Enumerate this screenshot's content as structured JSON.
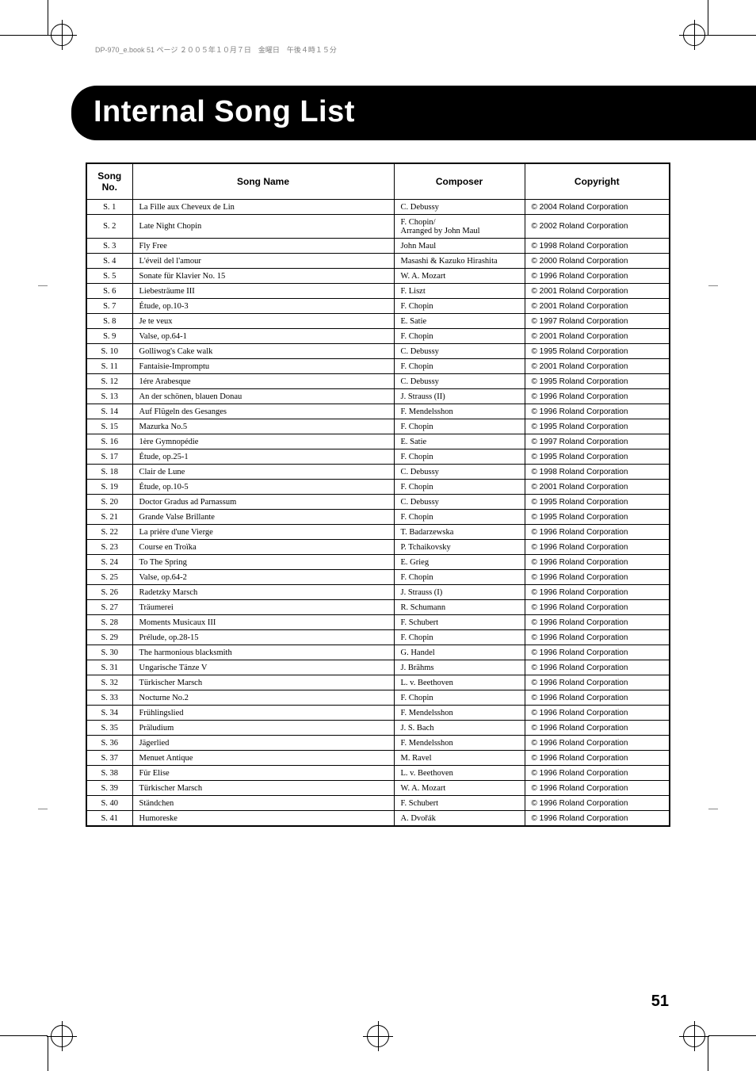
{
  "meta_line": "DP-970_e.book  51 ページ  ２００５年１０月７日　金曜日　午後４時１５分",
  "title": "Internal Song List",
  "headers": {
    "no": "Song\nNo.",
    "name": "Song Name",
    "composer": "Composer",
    "copyright": "Copyright"
  },
  "page_number": "51",
  "songs": [
    {
      "no": "S. 1",
      "name": "La Fille aux Cheveux de Lin",
      "composer": "C. Debussy",
      "copyright": "© 2004 Roland Corporation"
    },
    {
      "no": "S. 2",
      "name": "Late Night Chopin",
      "composer": "F. Chopin/\nArranged by John Maul",
      "copyright": "© 2002 Roland Corporation"
    },
    {
      "no": "S. 3",
      "name": "Fly Free",
      "composer": "John Maul",
      "copyright": "© 1998 Roland Corporation"
    },
    {
      "no": "S. 4",
      "name": "L'éveil del l'amour",
      "composer": "Masashi & Kazuko Hirashita",
      "copyright": "© 2000 Roland Corporation"
    },
    {
      "no": "S. 5",
      "name": "Sonate für Klavier No. 15",
      "composer": "W. A. Mozart",
      "copyright": "© 1996 Roland Corporation"
    },
    {
      "no": "S. 6",
      "name": "Liebesträume III",
      "composer": "F. Liszt",
      "copyright": "© 2001 Roland Corporation"
    },
    {
      "no": "S. 7",
      "name": "Étude, op.10-3",
      "composer": "F. Chopin",
      "copyright": "© 2001 Roland Corporation"
    },
    {
      "no": "S. 8",
      "name": "Je te veux",
      "composer": "E. Satie",
      "copyright": "© 1997 Roland Corporation"
    },
    {
      "no": "S. 9",
      "name": "Valse, op.64-1",
      "composer": "F. Chopin",
      "copyright": "© 2001 Roland Corporation"
    },
    {
      "no": "S. 10",
      "name": "Golliwog's Cake walk",
      "composer": "C. Debussy",
      "copyright": "© 1995 Roland Corporation"
    },
    {
      "no": "S. 11",
      "name": "Fantaisie-Impromptu",
      "composer": "F. Chopin",
      "copyright": "© 2001 Roland Corporation"
    },
    {
      "no": "S. 12",
      "name": "1ére Arabesque",
      "composer": "C. Debussy",
      "copyright": "© 1995 Roland Corporation"
    },
    {
      "no": "S. 13",
      "name": "An der schönen, blauen Donau",
      "composer": "J. Strauss (II)",
      "copyright": "© 1996 Roland Corporation"
    },
    {
      "no": "S. 14",
      "name": "Auf Flügeln des Gesanges",
      "composer": "F. Mendelsshon",
      "copyright": "© 1996 Roland Corporation"
    },
    {
      "no": "S. 15",
      "name": "Mazurka No.5",
      "composer": "F. Chopin",
      "copyright": "© 1995 Roland Corporation"
    },
    {
      "no": "S. 16",
      "name": "1ère Gymnopédie",
      "composer": "E. Satie",
      "copyright": "© 1997 Roland Corporation"
    },
    {
      "no": "S. 17",
      "name": "Étude, op.25-1",
      "composer": "F. Chopin",
      "copyright": "© 1995 Roland Corporation"
    },
    {
      "no": "S. 18",
      "name": "Clair de Lune",
      "composer": "C. Debussy",
      "copyright": "© 1998 Roland Corporation"
    },
    {
      "no": "S. 19",
      "name": "Étude, op.10-5",
      "composer": "F. Chopin",
      "copyright": "© 2001 Roland Corporation"
    },
    {
      "no": "S. 20",
      "name": "Doctor Gradus ad Parnassum",
      "composer": "C. Debussy",
      "copyright": "© 1995 Roland Corporation"
    },
    {
      "no": "S. 21",
      "name": "Grande Valse Brillante",
      "composer": "F. Chopin",
      "copyright": "© 1995 Roland Corporation"
    },
    {
      "no": "S. 22",
      "name": "La prière d'une Vierge",
      "composer": "T. Badarzewska",
      "copyright": "© 1996 Roland Corporation"
    },
    {
      "no": "S. 23",
      "name": "Course en Troïka",
      "composer": "P. Tchaikovsky",
      "copyright": "© 1996 Roland Corporation"
    },
    {
      "no": "S. 24",
      "name": "To The Spring",
      "composer": "E. Grieg",
      "copyright": "© 1996 Roland Corporation"
    },
    {
      "no": "S. 25",
      "name": "Valse, op.64-2",
      "composer": "F. Chopin",
      "copyright": "© 1996 Roland Corporation"
    },
    {
      "no": "S. 26",
      "name": "Radetzky Marsch",
      "composer": "J. Strauss (I)",
      "copyright": "© 1996 Roland Corporation"
    },
    {
      "no": "S. 27",
      "name": "Träumerei",
      "composer": "R. Schumann",
      "copyright": "© 1996 Roland Corporation"
    },
    {
      "no": "S. 28",
      "name": "Moments Musicaux III",
      "composer": "F. Schubert",
      "copyright": "© 1996 Roland Corporation"
    },
    {
      "no": "S. 29",
      "name": "Prélude, op.28-15",
      "composer": "F. Chopin",
      "copyright": "© 1996 Roland Corporation"
    },
    {
      "no": "S. 30",
      "name": "The harmonious blacksmith",
      "composer": "G. Handel",
      "copyright": "© 1996 Roland Corporation"
    },
    {
      "no": "S. 31",
      "name": "Ungarische Tänze V",
      "composer": "J. Brähms",
      "copyright": "© 1996 Roland Corporation"
    },
    {
      "no": "S. 32",
      "name": "Türkischer Marsch",
      "composer": "L. v. Beethoven",
      "copyright": "© 1996 Roland Corporation"
    },
    {
      "no": "S. 33",
      "name": "Nocturne No.2",
      "composer": "F. Chopin",
      "copyright": "© 1996 Roland Corporation"
    },
    {
      "no": "S. 34",
      "name": "Frühlingslied",
      "composer": "F. Mendelsshon",
      "copyright": "© 1996 Roland Corporation"
    },
    {
      "no": "S. 35",
      "name": "Präludium",
      "composer": "J. S. Bach",
      "copyright": "© 1996 Roland Corporation"
    },
    {
      "no": "S. 36",
      "name": "Jägerlied",
      "composer": "F. Mendelsshon",
      "copyright": "© 1996 Roland Corporation"
    },
    {
      "no": "S. 37",
      "name": "Menuet Antique",
      "composer": "M. Ravel",
      "copyright": "© 1996 Roland Corporation"
    },
    {
      "no": "S. 38",
      "name": "Für Elise",
      "composer": "L. v. Beethoven",
      "copyright": "© 1996 Roland Corporation"
    },
    {
      "no": "S. 39",
      "name": "Türkischer Marsch",
      "composer": "W. A. Mozart",
      "copyright": "© 1996 Roland Corporation"
    },
    {
      "no": "S. 40",
      "name": "Ständchen",
      "composer": "F. Schubert",
      "copyright": "© 1996 Roland Corporation"
    },
    {
      "no": "S. 41",
      "name": "Humoreske",
      "composer": "A. Dvořák",
      "copyright": "© 1996 Roland Corporation"
    }
  ]
}
